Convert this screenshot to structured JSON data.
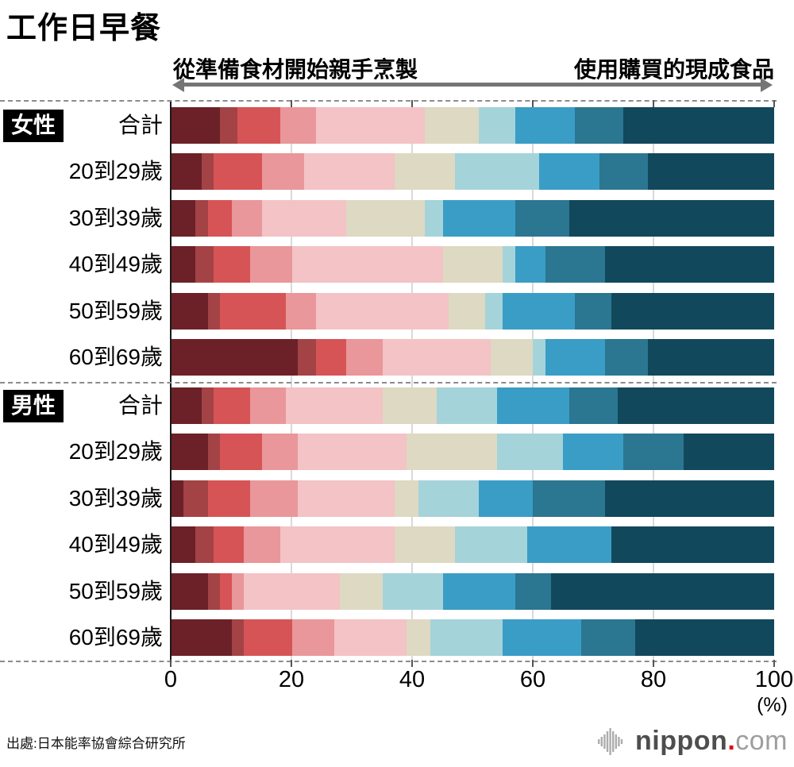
{
  "title": "工作日早餐",
  "scale": {
    "left_label": "從準備食材開始親手烹製",
    "right_label": "使用購買的現成食品"
  },
  "axis": {
    "unit": "(%)"
  },
  "source": "出處:日本能率協會綜合研究所",
  "logo": {
    "name": "nippon",
    "dot": ".",
    "tld": "com"
  },
  "colors": {
    "badge_bg": "#000000",
    "badge_text": "#ffffff",
    "arrow": "#757575",
    "dashed_line": "#8c8c8c",
    "gridline": "#d9d9d9",
    "axis_line": "#1a1a1a",
    "logo_gray": "#adadad",
    "logo_red": "#e60012"
  },
  "chart_data": {
    "type": "bar",
    "stacked": true,
    "orientation": "horizontal",
    "title": "工作日早餐",
    "xlabel": "(%)",
    "xlim": [
      0,
      100
    ],
    "x_ticks": [
      0,
      20,
      40,
      60,
      80,
      100
    ],
    "grid": true,
    "legend": "none (color scale from 從準備食材開始親手烹製 to 使用購買的現成食品)",
    "segment_colors": [
      "#6b2127",
      "#a34345",
      "#d65456",
      "#e9979a",
      "#f3c3c6",
      "#ded9c2",
      "#a5d3da",
      "#3a9dc5",
      "#2b7691",
      "#12485c"
    ],
    "groups": [
      {
        "label": "女性",
        "rows": [
          {
            "label": "合計",
            "values": [
              8,
              3,
              7,
              6,
              18,
              9,
              6,
              10,
              8,
              25
            ]
          },
          {
            "label": "20到29歲",
            "values": [
              5,
              2,
              8,
              7,
              15,
              10,
              14,
              10,
              8,
              21
            ]
          },
          {
            "label": "30到39歲",
            "values": [
              4,
              2,
              4,
              5,
              14,
              13,
              3,
              12,
              9,
              34
            ]
          },
          {
            "label": "40到49歲",
            "values": [
              4,
              3,
              6,
              7,
              25,
              10,
              2,
              5,
              10,
              28
            ]
          },
          {
            "label": "50到59歲",
            "values": [
              6,
              2,
              11,
              5,
              22,
              6,
              3,
              12,
              6,
              27
            ]
          },
          {
            "label": "60到69歲",
            "values": [
              21,
              3,
              5,
              6,
              18,
              7,
              2,
              10,
              7,
              21
            ]
          }
        ]
      },
      {
        "label": "男性",
        "rows": [
          {
            "label": "合計",
            "values": [
              5,
              2,
              6,
              6,
              16,
              9,
              10,
              12,
              8,
              26
            ]
          },
          {
            "label": "20到29歲",
            "values": [
              6,
              2,
              7,
              6,
              18,
              15,
              11,
              10,
              10,
              15
            ]
          },
          {
            "label": "30到39歲",
            "values": [
              2,
              4,
              7,
              8,
              16,
              4,
              10,
              9,
              12,
              28
            ]
          },
          {
            "label": "40到49歲",
            "values": [
              4,
              3,
              5,
              6,
              19,
              10,
              12,
              14,
              0,
              27
            ]
          },
          {
            "label": "50到59歲",
            "values": [
              6,
              2,
              2,
              2,
              16,
              7,
              10,
              12,
              6,
              37
            ]
          },
          {
            "label": "60到69歲",
            "values": [
              10,
              2,
              8,
              7,
              12,
              4,
              12,
              13,
              9,
              23
            ]
          }
        ]
      }
    ]
  }
}
